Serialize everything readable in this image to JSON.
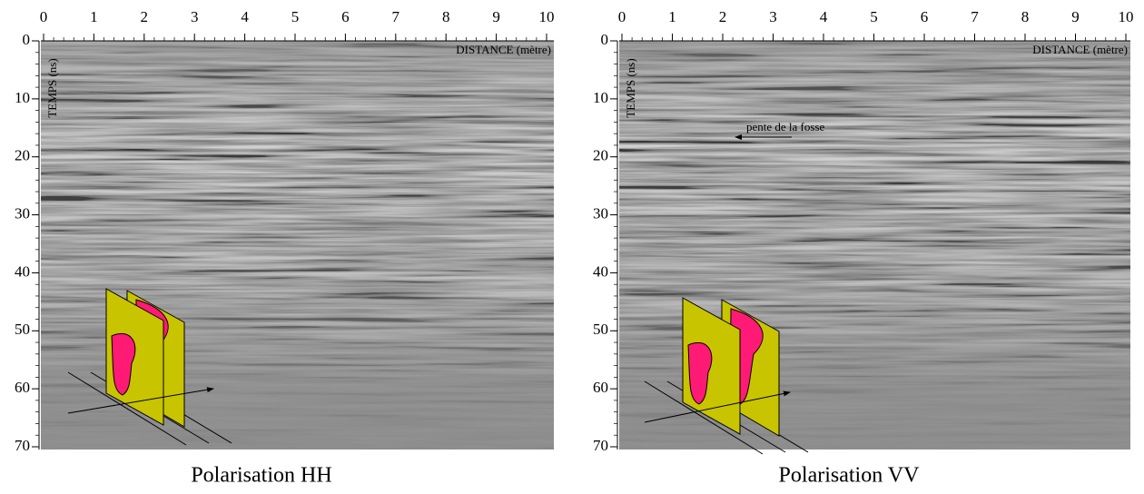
{
  "panels": [
    {
      "x_ticks": [
        0,
        1,
        2,
        3,
        4,
        5,
        6,
        7,
        8,
        9,
        10
      ],
      "y_ticks": [
        0,
        10,
        20,
        30,
        40,
        50,
        60,
        70
      ],
      "x_axis_label": "DISTANCE (mètre)",
      "y_axis_label": "TEMPS (ns)",
      "caption": "Polarisation HH"
    },
    {
      "x_ticks": [
        0,
        1,
        2,
        3,
        4,
        5,
        6,
        7,
        8,
        9,
        10
      ],
      "y_ticks": [
        0,
        10,
        20,
        30,
        40,
        50,
        60,
        70
      ],
      "x_axis_label": "DISTANCE (mètre)",
      "y_axis_label": "TEMPS (ns)",
      "annotation": "pente de la fosse",
      "caption": "Polarisation VV"
    }
  ]
}
